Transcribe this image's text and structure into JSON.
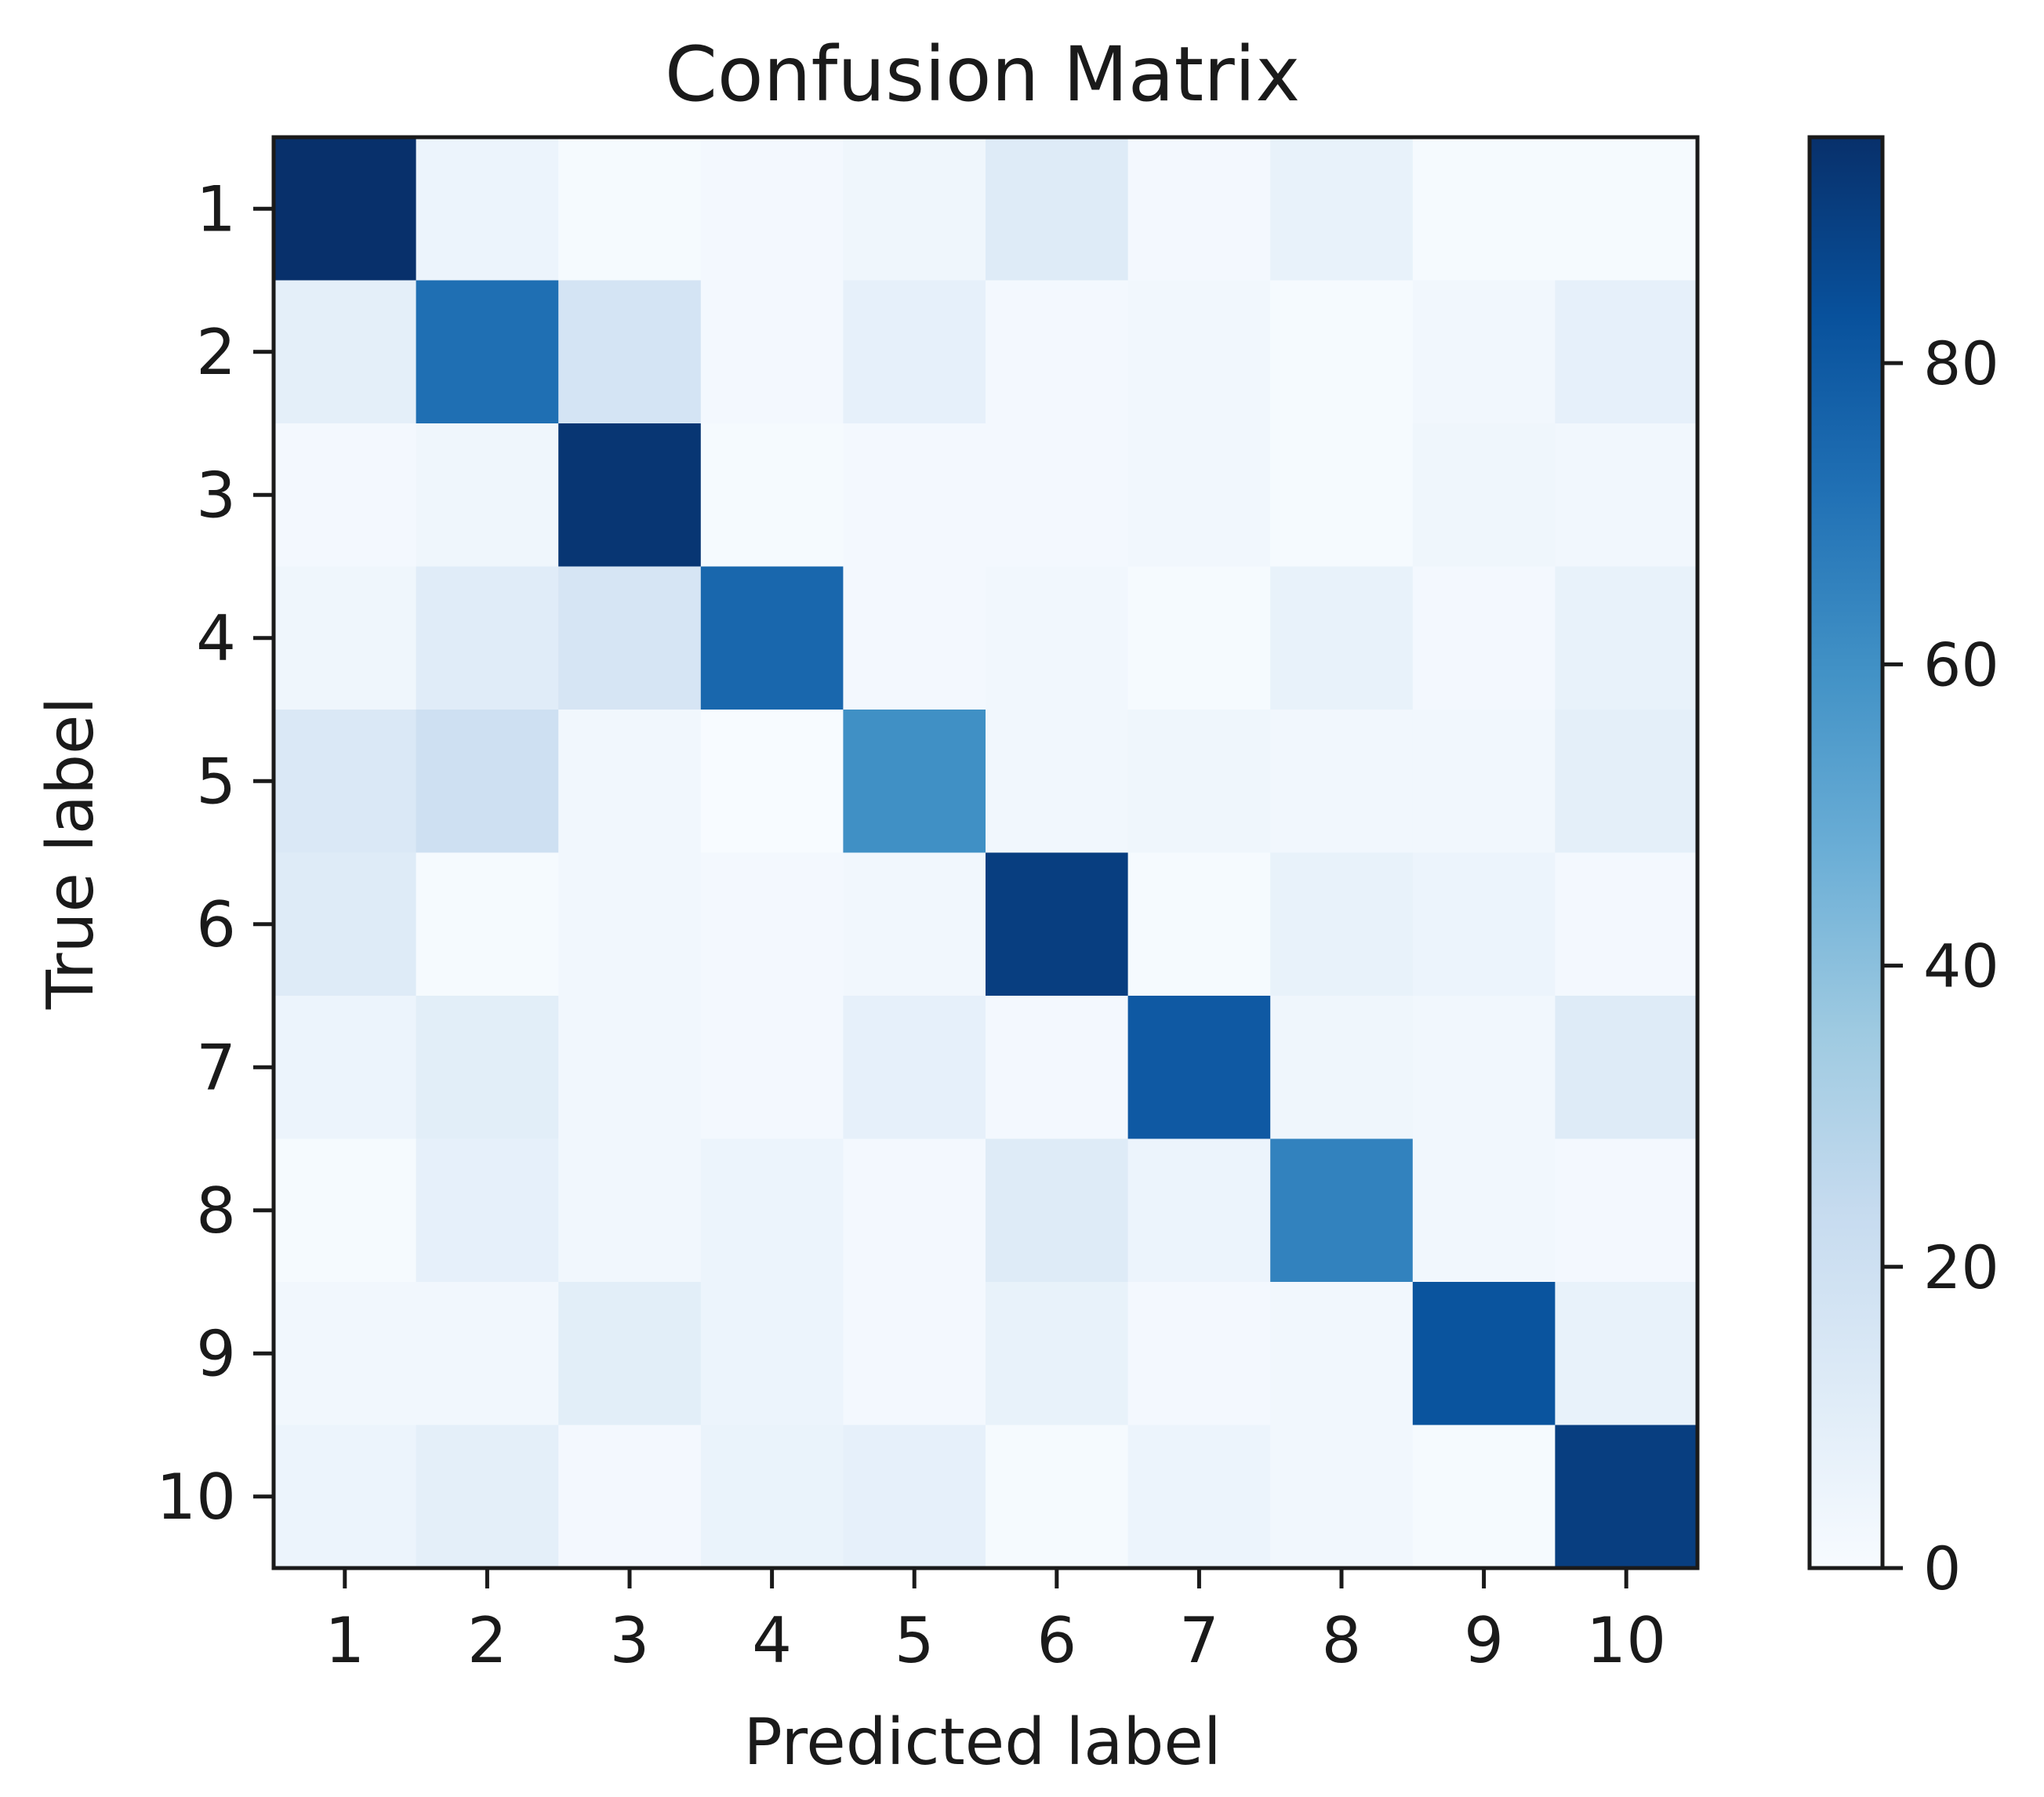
{
  "chart_data": {
    "type": "heatmap",
    "title": "Confusion Matrix",
    "xlabel": "Predicted label",
    "ylabel": "True label",
    "x_categories": [
      "1",
      "2",
      "3",
      "4",
      "5",
      "6",
      "7",
      "8",
      "9",
      "10"
    ],
    "y_categories": [
      "1",
      "2",
      "3",
      "4",
      "5",
      "6",
      "7",
      "8",
      "9",
      "10"
    ],
    "values": [
      [
        95,
        5,
        1,
        2,
        4,
        12,
        2,
        7,
        1,
        1
      ],
      [
        9,
        72,
        17,
        2,
        8,
        2,
        3,
        1,
        3,
        8
      ],
      [
        2,
        4,
        93,
        1,
        2,
        2,
        3,
        1,
        4,
        3
      ],
      [
        4,
        11,
        16,
        75,
        2,
        3,
        1,
        7,
        2,
        7
      ],
      [
        14,
        20,
        3,
        0,
        60,
        3,
        4,
        3,
        3,
        9
      ],
      [
        12,
        1,
        3,
        2,
        3,
        90,
        1,
        7,
        5,
        2
      ],
      [
        5,
        10,
        3,
        2,
        8,
        2,
        80,
        4,
        3,
        12
      ],
      [
        1,
        8,
        3,
        5,
        2,
        12,
        5,
        65,
        3,
        2
      ],
      [
        3,
        3,
        10,
        5,
        2,
        7,
        2,
        3,
        82,
        7
      ],
      [
        5,
        9,
        2,
        6,
        8,
        1,
        5,
        3,
        1,
        90
      ]
    ],
    "colormap": "Blues",
    "value_range": [
      0,
      95
    ],
    "colorbar_ticks": [
      0,
      20,
      40,
      60,
      80
    ],
    "grid": false
  }
}
